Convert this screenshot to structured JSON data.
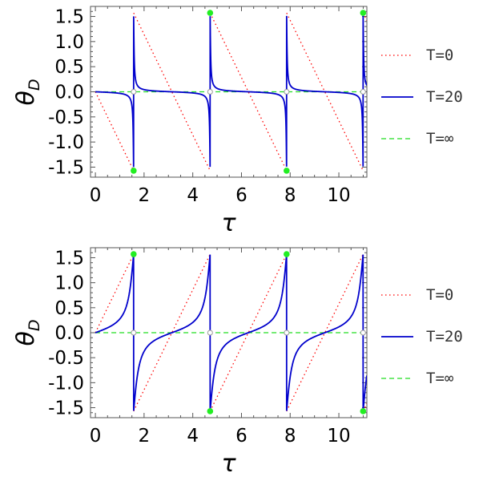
{
  "chart_data": [
    {
      "type": "line",
      "xlabel": "τ",
      "ylabel": "θ",
      "ylabel_sub": "D",
      "xlim": [
        -0.2,
        11.15
      ],
      "ylim": [
        -1.7,
        1.7
      ],
      "x_ticks": [
        0,
        2,
        4,
        6,
        8,
        10
      ],
      "x_tick_labels": [
        "0",
        "2",
        "4",
        "6",
        "8",
        "10"
      ],
      "y_ticks": [
        1.5,
        1.0,
        0.5,
        0.0,
        -0.5,
        -1.0,
        -1.5
      ],
      "y_tick_labels": [
        "1.5",
        "1.0",
        "0.5",
        "0.0",
        "-0.5",
        "-1.0",
        "-1.5"
      ],
      "grid": false,
      "legend_position": "right",
      "series": [
        {
          "name": "T=0",
          "style": "dotted",
          "color": "#ff0000",
          "formula": "sawtooth_down",
          "period": 3.14159,
          "amplitude": 1.5708
        },
        {
          "name": "T=20",
          "style": "solid",
          "color": "#0000cc",
          "formula": "tangent_spike_down",
          "period": 3.14159,
          "sharpness": 0.02
        },
        {
          "name": "T=∞",
          "style": "dashed",
          "color": "#22dd22",
          "formula": "zero",
          "value": 0
        }
      ],
      "green_points": [
        {
          "x": 1.5708,
          "y": -1.5708
        },
        {
          "x": 4.7124,
          "y": 1.5708
        },
        {
          "x": 7.854,
          "y": -1.5708
        },
        {
          "x": 10.9956,
          "y": 1.5708
        }
      ],
      "open_points": [
        {
          "x": 1.5708,
          "y": 0
        },
        {
          "x": 4.7124,
          "y": 0
        },
        {
          "x": 7.854,
          "y": 0
        },
        {
          "x": 10.9956,
          "y": 0
        }
      ]
    },
    {
      "type": "line",
      "xlabel": "τ",
      "ylabel": "θ",
      "ylabel_sub": "D",
      "xlim": [
        -0.2,
        11.15
      ],
      "ylim": [
        -1.7,
        1.7
      ],
      "x_ticks": [
        0,
        2,
        4,
        6,
        8,
        10
      ],
      "x_tick_labels": [
        "0",
        "2",
        "4",
        "6",
        "8",
        "10"
      ],
      "y_ticks": [
        1.5,
        1.0,
        0.5,
        0.0,
        -0.5,
        -1.0,
        -1.5
      ],
      "y_tick_labels": [
        "1.5",
        "1.0",
        "0.5",
        "0.0",
        "-0.5",
        "-1.0",
        "-1.5"
      ],
      "grid": false,
      "legend_position": "right",
      "series": [
        {
          "name": "T=0",
          "style": "dotted",
          "color": "#ff0000",
          "formula": "sawtooth_up",
          "period": 3.14159,
          "amplitude": 1.5708
        },
        {
          "name": "T=20",
          "style": "solid",
          "color": "#0000cc",
          "formula": "tangent_up",
          "period": 3.14159,
          "sharpness": 0.18
        },
        {
          "name": "T=∞",
          "style": "dashed",
          "color": "#22dd22",
          "formula": "zero",
          "value": 0
        }
      ],
      "green_points": [
        {
          "x": 1.5708,
          "y": 1.5708
        },
        {
          "x": 4.7124,
          "y": -1.5708
        },
        {
          "x": 7.854,
          "y": 1.5708
        },
        {
          "x": 10.9956,
          "y": -1.5708
        }
      ],
      "open_points": [
        {
          "x": 1.5708,
          "y": 0
        },
        {
          "x": 4.7124,
          "y": 0
        },
        {
          "x": 7.854,
          "y": 0
        },
        {
          "x": 10.9956,
          "y": 0
        }
      ]
    }
  ]
}
